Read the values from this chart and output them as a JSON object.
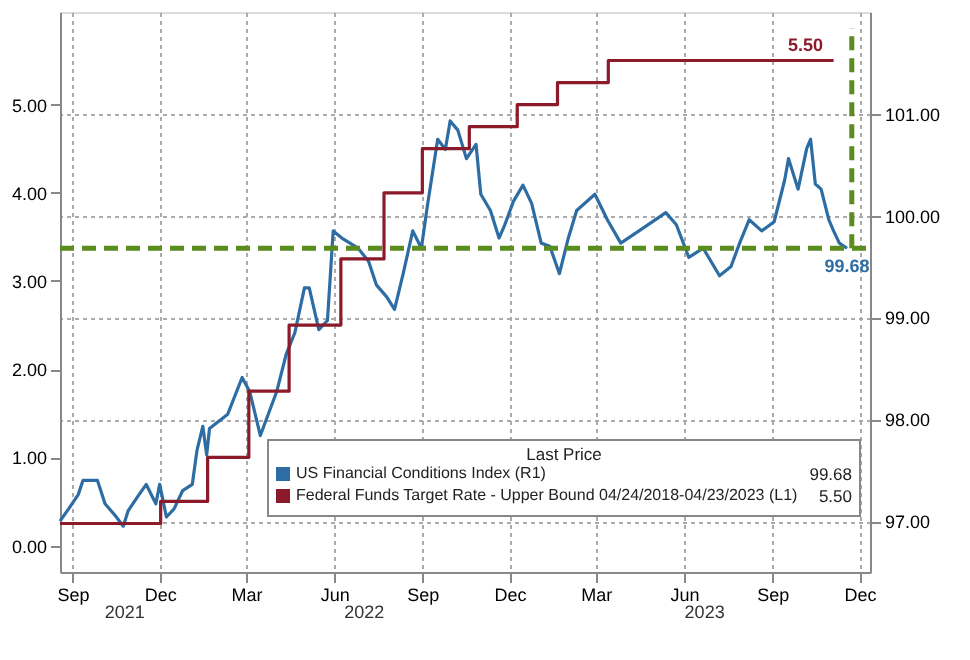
{
  "chart_data": {
    "type": "line",
    "xlim": [
      "2021-08-19",
      "2023-12-12"
    ],
    "xticks": [
      {
        "value": "2021-09-01",
        "label": "Sep"
      },
      {
        "value": "2021-12-01",
        "label": "Dec"
      },
      {
        "value": "2022-03-01",
        "label": "Mar"
      },
      {
        "value": "2022-06-01",
        "label": "Jun"
      },
      {
        "value": "2022-09-01",
        "label": "Sep"
      },
      {
        "value": "2022-12-01",
        "label": "Dec"
      },
      {
        "value": "2023-03-01",
        "label": "Mar"
      },
      {
        "value": "2023-06-01",
        "label": "Jun"
      },
      {
        "value": "2023-09-01",
        "label": "Sep"
      },
      {
        "value": "2023-12-01",
        "label": "Dec"
      }
    ],
    "ylim": [
      -0.3,
      6.05
    ],
    "yticks": [
      {
        "value": 0,
        "label": "0.00"
      },
      {
        "value": 1,
        "label": "1.00"
      },
      {
        "value": 2,
        "label": "2.00"
      },
      {
        "value": 3,
        "label": "3.00"
      },
      {
        "value": 4,
        "label": "4.00"
      },
      {
        "value": 5,
        "label": "5.00"
      }
    ],
    "y2lim": [
      96.5,
      102.0
    ],
    "y2ticks": [
      {
        "value": 97,
        "label": "97.00"
      },
      {
        "value": 98,
        "label": "98.00"
      },
      {
        "value": 99,
        "label": "99.00"
      },
      {
        "value": 100,
        "label": "100.00"
      },
      {
        "value": 101,
        "label": "101.00"
      }
    ],
    "grid": true,
    "legend": "bottom right",
    "legend_title": "Last Price",
    "annotations": [
      "2021",
      "2022",
      "2023"
    ],
    "ref_lines": [
      {
        "axis": "y2",
        "value": 99.68,
        "color": "#5b8c1e",
        "line_style": "dashed"
      },
      {
        "axis": "x",
        "value": "2023-11-23",
        "color": "#5b8c1e",
        "line_style": "dashed"
      }
    ],
    "series": [
      {
        "name": "US Financial Conditions Index  (R1)",
        "type": "line",
        "axis": "y2",
        "color": "#2e6da4",
        "x": [
          "2021-08-19",
          "2021-08-28",
          "2021-09-07",
          "2021-09-12",
          "2021-09-22",
          "2021-09-27",
          "2021-10-05",
          "2021-10-16",
          "2021-10-24",
          "2021-10-29",
          "2021-11-08",
          "2021-11-17",
          "2021-11-27",
          "2021-12-01",
          "2021-12-08",
          "2021-12-16",
          "2021-12-25",
          "2022-01-04",
          "2022-01-09",
          "2022-01-15",
          "2022-01-19",
          "2022-01-22",
          "2022-02-10",
          "2022-02-25",
          "2022-03-05",
          "2022-03-16",
          "2022-04-02",
          "2022-04-12",
          "2022-04-21",
          "2022-05-01",
          "2022-05-06",
          "2022-05-16",
          "2022-05-25",
          "2022-05-31",
          "2022-06-09",
          "2022-06-26",
          "2022-07-07",
          "2022-07-15",
          "2022-07-26",
          "2022-08-03",
          "2022-08-12",
          "2022-08-22",
          "2022-08-31",
          "2022-09-06",
          "2022-09-17",
          "2022-09-25",
          "2022-09-30",
          "2022-10-08",
          "2022-10-17",
          "2022-10-27",
          "2022-11-01",
          "2022-11-11",
          "2022-11-20",
          "2022-11-26",
          "2022-12-05",
          "2022-12-15",
          "2022-12-24",
          "2023-01-03",
          "2023-01-12",
          "2023-01-22",
          "2023-01-31",
          "2023-02-09",
          "2023-02-28",
          "2023-03-13",
          "2023-03-27",
          "2023-04-15",
          "2023-05-13",
          "2023-05-24",
          "2023-06-06",
          "2023-06-21",
          "2023-07-08",
          "2023-07-20",
          "2023-07-29",
          "2023-08-08",
          "2023-08-21",
          "2023-09-03",
          "2023-09-14",
          "2023-09-18",
          "2023-09-28",
          "2023-10-07",
          "2023-10-11",
          "2023-10-16",
          "2023-10-22",
          "2023-10-30",
          "2023-11-04",
          "2023-11-10",
          "2023-11-18"
        ],
        "values": [
          97.0,
          97.12,
          97.26,
          97.4,
          97.4,
          97.4,
          97.17,
          97.05,
          96.95,
          97.1,
          97.24,
          97.36,
          97.17,
          97.36,
          97.04,
          97.12,
          97.3,
          97.36,
          97.7,
          97.93,
          97.65,
          97.91,
          98.05,
          98.41,
          98.27,
          97.84,
          98.27,
          98.64,
          98.85,
          99.29,
          99.29,
          98.88,
          98.97,
          99.85,
          99.78,
          99.68,
          99.55,
          99.32,
          99.2,
          99.08,
          99.43,
          99.85,
          99.68,
          100.08,
          100.75,
          100.65,
          100.93,
          100.84,
          100.56,
          100.7,
          100.21,
          100.05,
          99.78,
          99.91,
          100.14,
          100.3,
          100.12,
          99.73,
          99.7,
          99.43,
          99.77,
          100.05,
          100.21,
          99.96,
          99.73,
          99.85,
          100.03,
          99.91,
          99.59,
          99.68,
          99.41,
          99.5,
          99.73,
          99.96,
          99.85,
          99.94,
          100.35,
          100.56,
          100.26,
          100.66,
          100.75,
          100.31,
          100.26,
          99.96,
          99.85,
          99.73,
          99.68
        ],
        "value_labels": [
          null,
          null,
          null,
          null,
          null,
          null,
          null,
          null,
          null,
          null,
          null,
          null,
          null,
          null,
          null,
          null,
          null,
          null,
          null,
          null,
          null,
          null,
          null,
          null,
          null,
          null,
          null,
          null,
          null,
          null,
          null,
          null,
          null,
          null,
          null,
          null,
          null,
          null,
          null,
          null,
          null,
          null,
          null,
          null,
          null,
          null,
          null,
          null,
          null,
          null,
          null,
          null,
          null,
          null,
          null,
          null,
          null,
          null,
          null,
          null,
          null,
          null,
          null,
          null,
          null,
          null,
          null,
          null,
          null,
          null,
          null,
          null,
          null,
          null,
          null,
          null,
          null,
          null,
          null,
          null,
          null,
          null,
          null,
          null,
          null,
          null,
          "99.68"
        ]
      },
      {
        "name": "Federal Funds Target Rate - Upper Bound 04/24/2018-04/23/2023  (L1)",
        "type": "step",
        "axis": "y",
        "color": "#8b1a2b",
        "x": [
          "2021-08-19",
          "2021-12-02",
          "2022-01-20",
          "2022-03-04",
          "2022-04-15",
          "2022-06-08",
          "2022-07-23",
          "2022-09-01",
          "2022-10-20",
          "2022-12-09",
          "2023-01-20",
          "2023-03-14",
          "2023-11-04"
        ],
        "values": [
          0.25,
          0.5,
          1.0,
          1.75,
          2.5,
          3.25,
          4.0,
          4.5,
          4.75,
          5.0,
          5.25,
          5.5,
          5.5
        ],
        "value_labels": [
          null,
          null,
          null,
          null,
          null,
          null,
          null,
          null,
          null,
          null,
          null,
          null,
          "5.50"
        ]
      }
    ]
  }
}
